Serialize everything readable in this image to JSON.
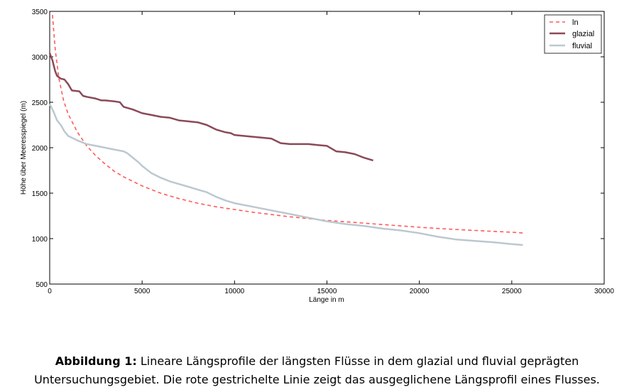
{
  "chart_data": {
    "type": "line",
    "title": "",
    "xlabel": "Länge in m",
    "ylabel": "Höhe über Meeresspiegel (m)",
    "xlim": [
      0,
      30000
    ],
    "ylim": [
      500,
      3500
    ],
    "xticks": [
      0,
      5000,
      10000,
      15000,
      20000,
      25000,
      30000
    ],
    "yticks": [
      500,
      1000,
      1500,
      2000,
      2500,
      3000,
      3500
    ],
    "grid": false,
    "legend_position": "top-right",
    "series": [
      {
        "name": "ln",
        "color": "#ff5a5a",
        "style": "dashed",
        "x": [
          150,
          300,
          500,
          750,
          1000,
          1500,
          2000,
          2500,
          3000,
          3500,
          4000,
          5000,
          6000,
          7000,
          8000,
          9000,
          10000,
          11000,
          12000,
          13000,
          14000,
          15000,
          16000,
          17000,
          18000,
          19000,
          20000,
          21000,
          22000,
          23000,
          24000,
          25000,
          25600
        ],
        "y": [
          3460,
          3080,
          2760,
          2520,
          2370,
          2170,
          2020,
          1910,
          1820,
          1740,
          1680,
          1580,
          1500,
          1440,
          1390,
          1350,
          1320,
          1290,
          1265,
          1240,
          1220,
          1200,
          1185,
          1170,
          1155,
          1140,
          1125,
          1112,
          1100,
          1090,
          1080,
          1070,
          1062
        ]
      },
      {
        "name": "glazial",
        "color": "#8a4a58",
        "style": "solid",
        "x": [
          0,
          150,
          300,
          400,
          600,
          800,
          1000,
          1200,
          1600,
          1800,
          2000,
          2500,
          2800,
          3000,
          3500,
          3800,
          4000,
          4500,
          5000,
          5500,
          6000,
          6500,
          7000,
          7500,
          8000,
          8500,
          9000,
          9500,
          9800,
          10000,
          11000,
          11500,
          12000,
          12500,
          13000,
          14000,
          14500,
          15000,
          15500,
          16000,
          16500,
          17000,
          17500
        ],
        "y": [
          3040,
          2960,
          2840,
          2790,
          2760,
          2750,
          2700,
          2630,
          2620,
          2570,
          2560,
          2540,
          2520,
          2520,
          2510,
          2500,
          2450,
          2420,
          2380,
          2360,
          2340,
          2330,
          2300,
          2290,
          2280,
          2250,
          2200,
          2170,
          2160,
          2140,
          2120,
          2110,
          2100,
          2050,
          2040,
          2040,
          2030,
          2020,
          1960,
          1950,
          1930,
          1890,
          1860
        ]
      },
      {
        "name": "fluvial",
        "color": "#bcc8d0",
        "style": "solid",
        "x": [
          0,
          200,
          400,
          600,
          800,
          1000,
          1500,
          2000,
          2500,
          3000,
          3500,
          4000,
          4200,
          4500,
          4800,
          5000,
          5500,
          6000,
          6500,
          7000,
          7500,
          8000,
          8500,
          9000,
          9500,
          10000,
          11000,
          12000,
          13000,
          14000,
          15000,
          16000,
          17000,
          18000,
          19000,
          20000,
          21000,
          22000,
          23000,
          24000,
          25000,
          25600
        ],
        "y": [
          2480,
          2400,
          2300,
          2250,
          2180,
          2130,
          2080,
          2040,
          2020,
          2000,
          1980,
          1960,
          1940,
          1890,
          1840,
          1800,
          1720,
          1670,
          1630,
          1600,
          1570,
          1540,
          1510,
          1460,
          1420,
          1390,
          1350,
          1310,
          1270,
          1230,
          1190,
          1160,
          1140,
          1110,
          1090,
          1060,
          1020,
          990,
          975,
          960,
          940,
          930
        ]
      }
    ]
  },
  "caption": {
    "label": "Abbildung 1:",
    "text": " Lineare Längsprofile der längsten Flüsse in dem glazial und fluvial geprägten Untersuchungsgebiet. Die rote gestrichelte Linie zeigt das ausgeglichene Längsprofil eines Flusses."
  }
}
